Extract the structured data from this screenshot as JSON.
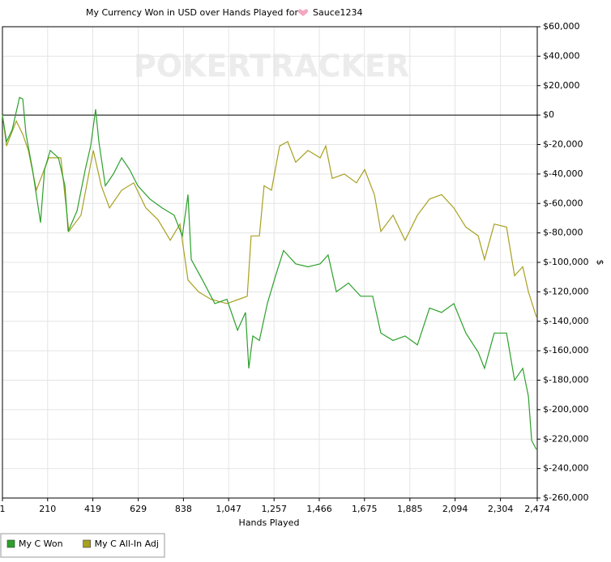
{
  "chart_data": {
    "type": "line",
    "title": "My Currency Won in USD over Hands Played for",
    "player": "Sauce1234",
    "watermark": "POKERTRACKER",
    "x_label": "Hands Played",
    "y_label": "$",
    "xlim": [
      1,
      2474
    ],
    "xticks": [
      1,
      210,
      419,
      629,
      838,
      {
        "value": 1047,
        "label": "1,047"
      },
      {
        "value": 1257,
        "label": "1,257"
      },
      {
        "value": 1466,
        "label": "1,466"
      },
      {
        "value": 1675,
        "label": "1,675"
      },
      {
        "value": 1885,
        "label": "1,885"
      },
      {
        "value": 2094,
        "label": "2,094"
      },
      {
        "value": 2304,
        "label": "2,304"
      },
      {
        "value": 2474,
        "label": "2,474"
      }
    ],
    "ylim": [
      -260000,
      60000
    ],
    "yticks": [
      {
        "value": -260000,
        "label": "$-260,000"
      },
      {
        "value": -240000,
        "label": "$-240,000"
      },
      {
        "value": -220000,
        "label": "$-220,000"
      },
      {
        "value": -200000,
        "label": "$-200,000"
      },
      {
        "value": -180000,
        "label": "$-180,000"
      },
      {
        "value": -160000,
        "label": "$-160,000"
      },
      {
        "value": -140000,
        "label": "$-140,000"
      },
      {
        "value": -120000,
        "label": "$-120,000"
      },
      {
        "value": -100000,
        "label": "$-100,000"
      },
      {
        "value": -80000,
        "label": "$-80,000"
      },
      {
        "value": -60000,
        "label": "$-60,000"
      },
      {
        "value": -40000,
        "label": "$-40,000"
      },
      {
        "value": -20000,
        "label": "$-20,000"
      },
      {
        "value": 0,
        "label": "$0"
      },
      {
        "value": 20000,
        "label": "$20,000"
      },
      {
        "value": 40000,
        "label": "$40,000"
      },
      {
        "value": 60000,
        "label": "$60,000"
      }
    ],
    "reference_line": 0,
    "grid": true,
    "legend": "bottom-left",
    "series": [
      {
        "name": "My C Won",
        "color": "#2ca02c",
        "x": [
          1,
          20,
          46,
          80,
          95,
          110,
          140,
          177,
          196,
          222,
          260,
          290,
          305,
          346,
          384,
          409,
          432,
          447,
          477,
          514,
          552,
          589,
          627,
          683,
          739,
          795,
          833,
          859,
          874,
          926,
          983,
          1039,
          1088,
          1125,
          1140,
          1159,
          1189,
          1226,
          1264,
          1301,
          1357,
          1414,
          1470,
          1507,
          1545,
          1601,
          1657,
          1713,
          1751,
          1807,
          1863,
          1920,
          1976,
          2032,
          2088,
          2144,
          2201,
          2230,
          2275,
          2332,
          2369,
          2407,
          2433,
          2448,
          2470
        ],
        "values": [
          0,
          -18000,
          -10000,
          12000,
          11000,
          -13000,
          -37000,
          -73000,
          -37000,
          -24000,
          -29000,
          -48000,
          -79000,
          -65000,
          -37000,
          -21000,
          4000,
          -18000,
          -48000,
          -40000,
          -29000,
          -37000,
          -48000,
          -57000,
          -63000,
          -68000,
          -82000,
          -54000,
          -98000,
          -112000,
          -128000,
          -125000,
          -146000,
          -134000,
          -172000,
          -150000,
          -153000,
          -128000,
          -109000,
          -92000,
          -101000,
          -103000,
          -101000,
          -95000,
          -120000,
          -114000,
          -123000,
          -123000,
          -148000,
          -153000,
          -150000,
          -156000,
          -131000,
          -134000,
          -128000,
          -148000,
          -161000,
          -172000,
          -148000,
          -148000,
          -180000,
          -172000,
          -191000,
          -221000,
          -227000
        ]
      },
      {
        "name": "My C All-In Adj",
        "color": "#a8a020",
        "x": [
          1,
          20,
          65,
          95,
          121,
          158,
          215,
          271,
          308,
          364,
          421,
          458,
          496,
          552,
          608,
          664,
          720,
          777,
          822,
          859,
          908,
          964,
          1039,
          1095,
          1133,
          1151,
          1189,
          1211,
          1245,
          1283,
          1320,
          1357,
          1414,
          1470,
          1496,
          1526,
          1582,
          1638,
          1676,
          1721,
          1751,
          1807,
          1863,
          1920,
          1976,
          2032,
          2088,
          2144,
          2201,
          2230,
          2275,
          2332,
          2369,
          2407,
          2433,
          2470
        ],
        "values": [
          0,
          -21000,
          -4000,
          -13000,
          -24000,
          -51000,
          -29000,
          -29000,
          -79000,
          -68000,
          -24000,
          -48000,
          -63000,
          -51000,
          -46000,
          -63000,
          -71000,
          -85000,
          -74000,
          -112000,
          -120000,
          -125000,
          -128000,
          -125000,
          -123000,
          -82000,
          -82000,
          -48000,
          -51000,
          -21000,
          -18000,
          -32000,
          -24000,
          -29000,
          -21000,
          -43000,
          -40000,
          -46000,
          -37000,
          -54000,
          -79000,
          -68000,
          -85000,
          -68000,
          -57000,
          -54000,
          -63000,
          -76000,
          -82000,
          -98000,
          -74000,
          -76000,
          -109000,
          -103000,
          -120000,
          -137000
        ]
      }
    ]
  }
}
